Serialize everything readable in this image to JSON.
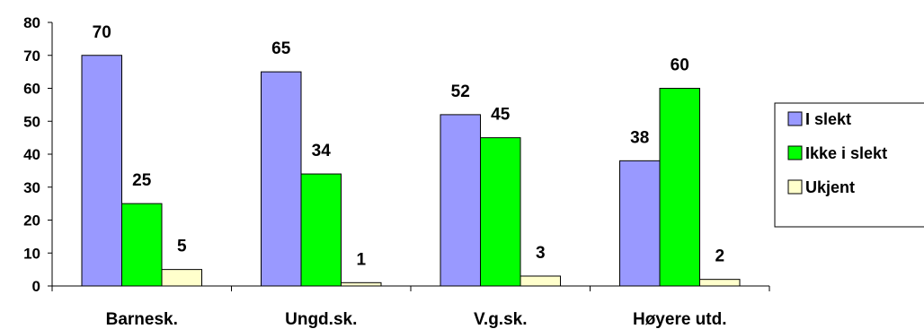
{
  "chart_data": {
    "type": "bar",
    "categories": [
      "Barnesk.",
      "Ungd.sk.",
      "V.g.sk.",
      "Høyere utd."
    ],
    "series": [
      {
        "name": "I slekt",
        "values": [
          70,
          65,
          52,
          38
        ],
        "color": "#9999FF"
      },
      {
        "name": "Ikke i slekt",
        "values": [
          25,
          34,
          45,
          60
        ],
        "color": "#00FF00"
      },
      {
        "name": "Ukjent",
        "values": [
          5,
          1,
          3,
          2
        ],
        "color": "#FFFFCC"
      }
    ],
    "title": "",
    "xlabel": "",
    "ylabel": "",
    "ylim": [
      0,
      80
    ],
    "yticks": [
      0,
      10,
      20,
      30,
      40,
      50,
      60,
      70,
      80
    ],
    "grid": false,
    "legend_position": "right",
    "data_labels": true
  }
}
